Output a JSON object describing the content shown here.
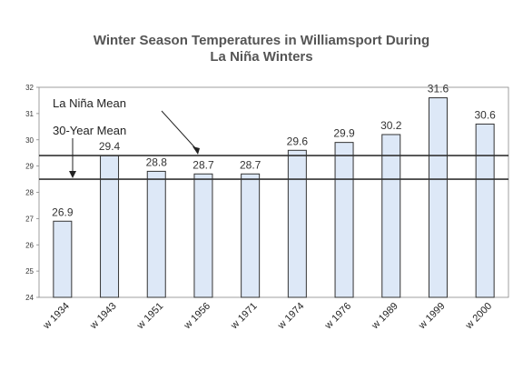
{
  "chart_data": {
    "type": "bar",
    "title_line1": "Winter Season Temperatures in Williamsport During",
    "title_line2": "La Niña Winters",
    "categories": [
      "w 1934",
      "w 1943",
      "w 1951",
      "w 1956",
      "w 1971",
      "w 1974",
      "w 1976",
      "w 1989",
      "w 1999",
      "w 2000"
    ],
    "values": [
      26.9,
      29.4,
      28.8,
      28.7,
      28.7,
      29.6,
      29.9,
      30.2,
      31.6,
      30.6
    ],
    "value_labels": [
      "26.9",
      "29.4",
      "28.8",
      "28.7",
      "28.7",
      "29.6",
      "29.9",
      "30.2",
      "31.6",
      "30.6"
    ],
    "ylim": [
      24,
      32
    ],
    "yticks": [
      "24",
      "25",
      "26",
      "27",
      "28",
      "29",
      "30",
      "31",
      "32"
    ],
    "reference_lines": [
      {
        "name": "La Niña Mean",
        "value": 29.4
      },
      {
        "name": "30-Year Mean",
        "value": 28.5
      }
    ],
    "bar_color": "#dde8f7",
    "bar_stroke": "#333333"
  }
}
